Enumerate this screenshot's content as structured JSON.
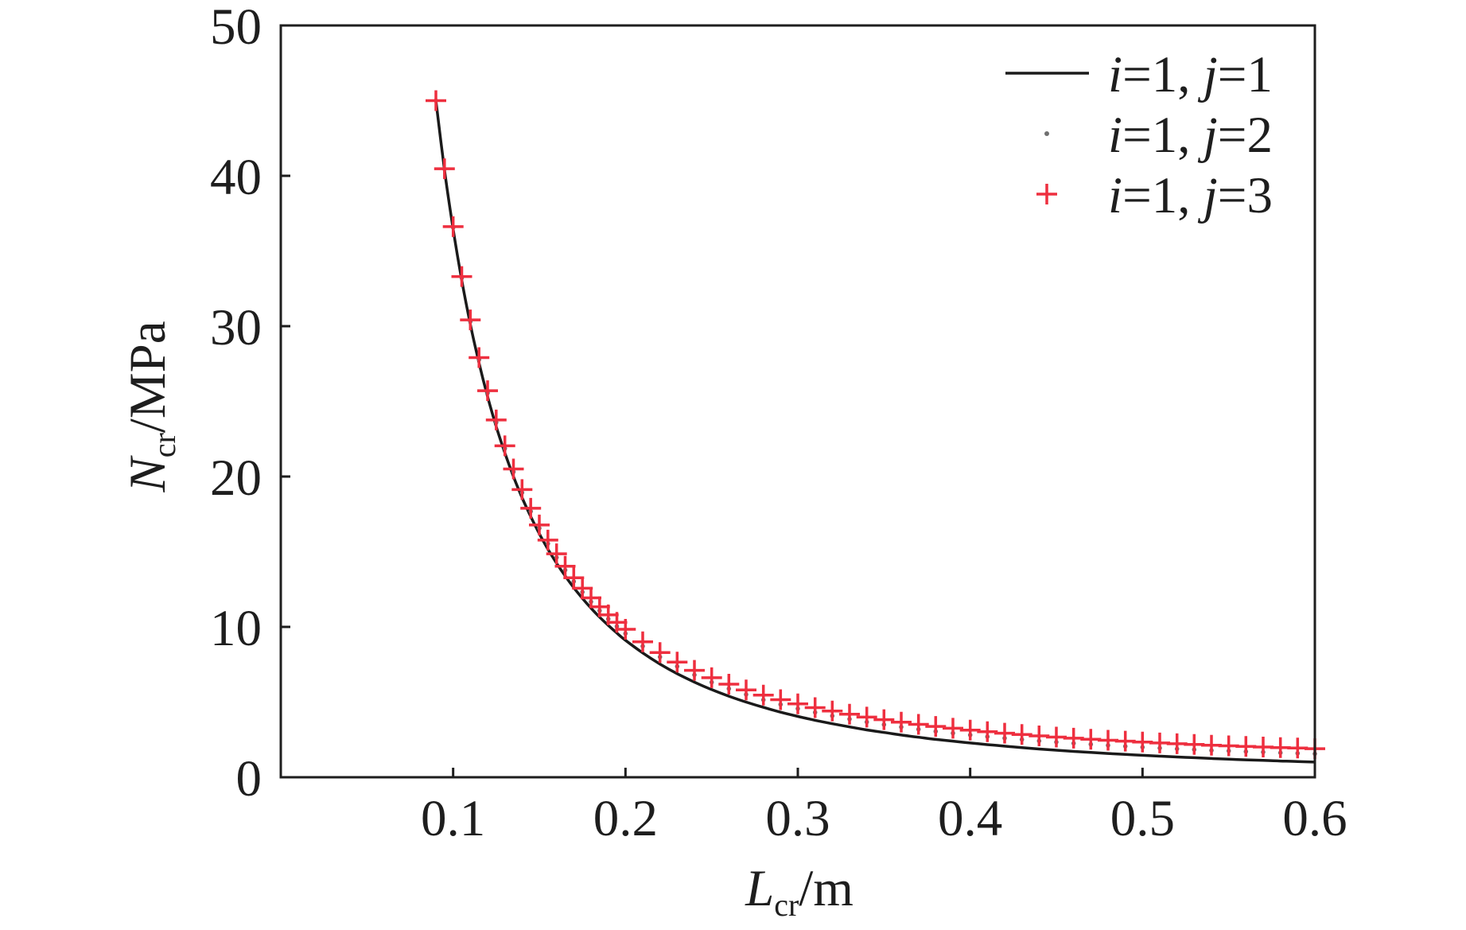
{
  "chart_data": {
    "type": "line",
    "xlabel": {
      "var": "L",
      "sub": "cr",
      "unit": "/m"
    },
    "ylabel": {
      "var": "N",
      "sub": "cr",
      "unit": "/MPa"
    },
    "xlim": [
      0,
      0.6
    ],
    "ylim": [
      0,
      50
    ],
    "xticks": [
      "0.1",
      "0.2",
      "0.3",
      "0.4",
      "0.5",
      "0.6"
    ],
    "yticks": [
      "0",
      "10",
      "20",
      "30",
      "40",
      "50"
    ],
    "grid": false,
    "legend": "top-right",
    "x": [
      0.09,
      0.095,
      0.1,
      0.105,
      0.11,
      0.115,
      0.12,
      0.125,
      0.13,
      0.135,
      0.14,
      0.145,
      0.15,
      0.155,
      0.16,
      0.165,
      0.17,
      0.175,
      0.18,
      0.185,
      0.19,
      0.195,
      0.2,
      0.21,
      0.22,
      0.23,
      0.24,
      0.25,
      0.26,
      0.27,
      0.28,
      0.29,
      0.3,
      0.31,
      0.32,
      0.33,
      0.34,
      0.35,
      0.36,
      0.37,
      0.38,
      0.39,
      0.4,
      0.41,
      0.42,
      0.43,
      0.44,
      0.45,
      0.46,
      0.47,
      0.48,
      0.49,
      0.5,
      0.51,
      0.52,
      0.53,
      0.54,
      0.55,
      0.56,
      0.57,
      0.58,
      0.59,
      0.6
    ],
    "series": [
      {
        "name": "i=1, j=1",
        "style": "line",
        "color": "#1a1a1a",
        "values": [
          45.0,
          40.39,
          36.45,
          33.06,
          30.12,
          27.56,
          25.31,
          23.33,
          21.57,
          20.0,
          18.6,
          17.34,
          16.2,
          15.17,
          14.24,
          13.39,
          12.61,
          11.9,
          11.25,
          10.65,
          10.1,
          9.59,
          9.11,
          8.27,
          7.53,
          6.89,
          6.33,
          5.83,
          5.39,
          5.0,
          4.65,
          4.33,
          4.05,
          3.79,
          3.56,
          3.35,
          3.15,
          2.98,
          2.81,
          2.66,
          2.52,
          2.4,
          2.28,
          2.17,
          2.07,
          1.97,
          1.88,
          1.8,
          1.72,
          1.65,
          1.58,
          1.52,
          1.46,
          1.4,
          1.35,
          1.3,
          1.25,
          1.2,
          1.16,
          1.12,
          1.08,
          1.05,
          1.01
        ]
      },
      {
        "name": "i=1, j=2",
        "style": "dot",
        "color": "#707070",
        "values": [
          45.0,
          40.45,
          36.56,
          33.21,
          30.31,
          27.78,
          25.56,
          23.6,
          21.86,
          20.31,
          18.93,
          17.68,
          16.56,
          15.54,
          14.62,
          13.78,
          13.02,
          12.32,
          11.67,
          11.08,
          10.53,
          10.03,
          9.56,
          8.72,
          8.0,
          7.37,
          6.81,
          6.32,
          5.89,
          5.5,
          5.15,
          4.84,
          4.56,
          4.31,
          4.08,
          3.87,
          3.67,
          3.5,
          3.34,
          3.19,
          3.05,
          2.93,
          2.81,
          2.7,
          2.6,
          2.51,
          2.42,
          2.34,
          2.26,
          2.19,
          2.12,
          2.06,
          2.0,
          1.94,
          1.89,
          1.84,
          1.79,
          1.75,
          1.71,
          1.67,
          1.63,
          1.59,
          1.56
        ]
      },
      {
        "name": "i=1, j=3",
        "style": "plus",
        "color": "#ee2f3f",
        "values": [
          45.0,
          40.47,
          36.62,
          33.3,
          30.42,
          27.91,
          25.71,
          23.76,
          22.04,
          20.5,
          19.13,
          17.89,
          16.78,
          15.77,
          14.86,
          14.03,
          13.27,
          12.57,
          11.93,
          11.34,
          10.8,
          10.3,
          9.84,
          9.01,
          8.29,
          7.66,
          7.11,
          6.62,
          6.19,
          5.81,
          5.46,
          5.16,
          4.88,
          4.63,
          4.4,
          4.19,
          4.0,
          3.83,
          3.66,
          3.52,
          3.38,
          3.26,
          3.14,
          3.03,
          2.93,
          2.84,
          2.75,
          2.67,
          2.6,
          2.53,
          2.46,
          2.4,
          2.34,
          2.28,
          2.23,
          2.18,
          2.13,
          2.09,
          2.05,
          2.01,
          1.97,
          1.94,
          1.9
        ]
      }
    ]
  }
}
